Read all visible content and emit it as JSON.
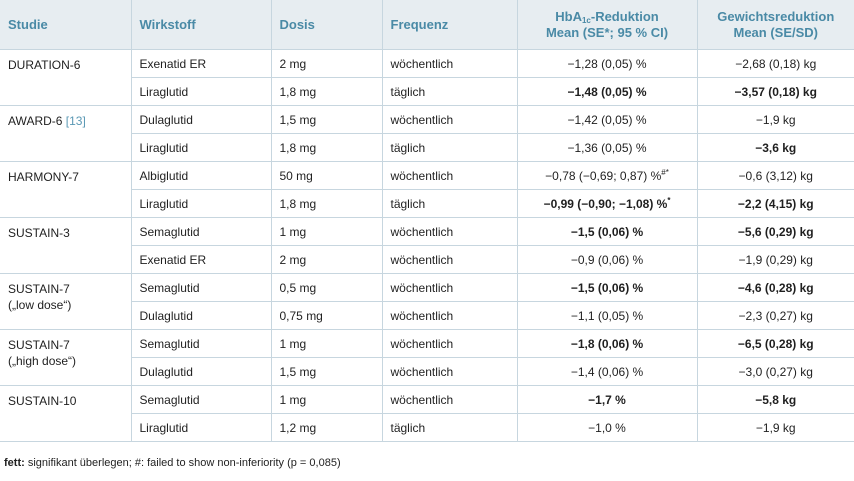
{
  "headers": {
    "studie": "Studie",
    "wirkstoff": "Wirkstoff",
    "dosis": "Dosis",
    "frequenz": "Frequenz",
    "hba_pre": "HbA",
    "hba_sub": "1c",
    "hba_post": "-Reduktion",
    "hba_line2": "Mean (SE*; 95 % CI)",
    "gew_line1": "Gewichtsreduktion",
    "gew_line2": "Mean (SE/SD)"
  },
  "studies": [
    {
      "name_lines": [
        "DURATION-6"
      ],
      "ref": "",
      "rows": [
        {
          "wirkstoff": "Exenatid ER",
          "dosis": "2 mg",
          "frequenz": "wöchentlich",
          "hba": "−1,28 (0,05) %",
          "hba_sup": "",
          "hba_bold": false,
          "gew": "−2,68 (0,18) kg",
          "gew_bold": false
        },
        {
          "wirkstoff": "Liraglutid",
          "dosis": "1,8 mg",
          "frequenz": "täglich",
          "hba": "−1,48 (0,05) %",
          "hba_sup": "",
          "hba_bold": true,
          "gew": "−3,57 (0,18) kg",
          "gew_bold": true
        }
      ]
    },
    {
      "name_lines": [
        "AWARD-6 "
      ],
      "ref": "[13]",
      "rows": [
        {
          "wirkstoff": "Dulaglutid",
          "dosis": "1,5 mg",
          "frequenz": "wöchentlich",
          "hba": "−1,42 (0,05) %",
          "hba_sup": "",
          "hba_bold": false,
          "gew": "−1,9 kg",
          "gew_bold": false
        },
        {
          "wirkstoff": "Liraglutid",
          "dosis": "1,8 mg",
          "frequenz": "täglich",
          "hba": "−1,36 (0,05) %",
          "hba_sup": "",
          "hba_bold": false,
          "gew": "−3,6 kg",
          "gew_bold": true
        }
      ]
    },
    {
      "name_lines": [
        "HARMONY-7"
      ],
      "ref": "",
      "rows": [
        {
          "wirkstoff": "Albiglutid",
          "dosis": "50 mg",
          "frequenz": "wöchentlich",
          "hba": "−0,78 (−0,69; 0,87) %",
          "hba_sup": "#*",
          "hba_bold": false,
          "gew": "−0,6 (3,12) kg",
          "gew_bold": false
        },
        {
          "wirkstoff": "Liraglutid",
          "dosis": "1,8 mg",
          "frequenz": "täglich",
          "hba": "−0,99 (−0,90; −1,08) %",
          "hba_sup": "*",
          "hba_bold": true,
          "gew": "−2,2 (4,15) kg",
          "gew_bold": true
        }
      ]
    },
    {
      "name_lines": [
        "SUSTAIN-3"
      ],
      "ref": "",
      "rows": [
        {
          "wirkstoff": "Semaglutid",
          "dosis": "1 mg",
          "frequenz": "wöchentlich",
          "hba": "−1,5 (0,06) %",
          "hba_sup": "",
          "hba_bold": true,
          "gew": "−5,6 (0,29) kg",
          "gew_bold": true
        },
        {
          "wirkstoff": "Exenatid ER",
          "dosis": "2 mg",
          "frequenz": "wöchentlich",
          "hba": "−0,9 (0,06) %",
          "hba_sup": "",
          "hba_bold": false,
          "gew": "−1,9 (0,29) kg",
          "gew_bold": false
        }
      ]
    },
    {
      "name_lines": [
        "SUSTAIN-7",
        "(„low dose“)"
      ],
      "ref": "",
      "rows": [
        {
          "wirkstoff": "Semaglutid",
          "dosis": "0,5 mg",
          "frequenz": "wöchentlich",
          "hba": "−1,5 (0,06) %",
          "hba_sup": "",
          "hba_bold": true,
          "gew": "−4,6 (0,28) kg",
          "gew_bold": true
        },
        {
          "wirkstoff": "Dulaglutid",
          "dosis": "0,75 mg",
          "frequenz": "wöchentlich",
          "hba": "−1,1 (0,05) %",
          "hba_sup": "",
          "hba_bold": false,
          "gew": "−2,3 (0,27) kg",
          "gew_bold": false
        }
      ]
    },
    {
      "name_lines": [
        "SUSTAIN-7",
        "(„high dose“)"
      ],
      "ref": "",
      "rows": [
        {
          "wirkstoff": "Semaglutid",
          "dosis": "1 mg",
          "frequenz": "wöchentlich",
          "hba": "−1,8 (0,06) %",
          "hba_sup": "",
          "hba_bold": true,
          "gew": "−6,5 (0,28) kg",
          "gew_bold": true
        },
        {
          "wirkstoff": "Dulaglutid",
          "dosis": "1,5 mg",
          "frequenz": "wöchentlich",
          "hba": "−1,4 (0,06) %",
          "hba_sup": "",
          "hba_bold": false,
          "gew": "−3,0 (0,27) kg",
          "gew_bold": false
        }
      ]
    },
    {
      "name_lines": [
        "SUSTAIN-10"
      ],
      "ref": "",
      "rows": [
        {
          "wirkstoff": "Semaglutid",
          "dosis": "1 mg",
          "frequenz": "wöchentlich",
          "hba": "−1,7 %",
          "hba_sup": "",
          "hba_bold": true,
          "gew": "−5,8 kg",
          "gew_bold": true
        },
        {
          "wirkstoff": "Liraglutid",
          "dosis": "1,2 mg",
          "frequenz": "täglich",
          "hba": "−1,0 %",
          "hba_sup": "",
          "hba_bold": false,
          "gew": "−1,9 kg",
          "gew_bold": false
        }
      ]
    }
  ],
  "footnote": {
    "bold_label": "fett:",
    "text": " signifikant überlegen;  #: failed to show non-inferiority (p = 0,085)"
  }
}
